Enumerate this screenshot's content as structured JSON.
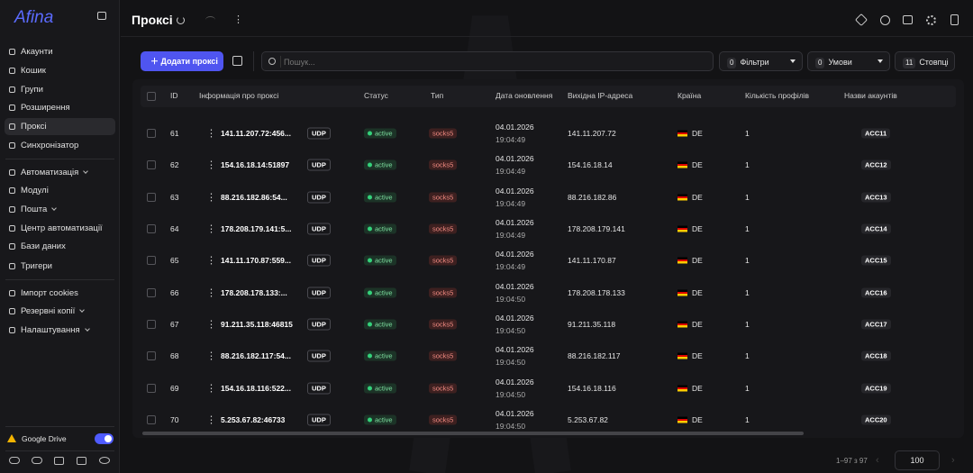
{
  "sidebar": {
    "logo": "Afina",
    "nav_top": [
      "Акаунти",
      "Кошик",
      "Групи",
      "Розширення",
      "Проксі",
      "Синхронізатор"
    ],
    "nav_auto": [
      "Автоматизація",
      "Модулі",
      "Пошта",
      "Центр автоматизації",
      "Бази даних",
      "Тригери"
    ],
    "nav_bottom": [
      "Імпорт cookies",
      "Резервні копії",
      "Налаштування"
    ],
    "google_drive": "Google Drive"
  },
  "header": {
    "title": "Проксі"
  },
  "toolbar": {
    "add_button": "Додати проксі",
    "search_placeholder": "Пошук...",
    "filters_count": "0",
    "filters": "Фільтри",
    "conditions_count": "0",
    "conditions": "Умови",
    "columns_count": "11",
    "columns": "Стовпці"
  },
  "table": {
    "headers": [
      "ID",
      "Інформація про проксі",
      "Статус",
      "Тип",
      "Дата оновлення",
      "Вихідна IP-адреса",
      "Країна",
      "Кількість профілів",
      "Назви акаунтів"
    ],
    "rows": [
      {
        "id": 61,
        "info": "141.11.207.72:456...",
        "protocol": "UDP",
        "status": "active",
        "type": "socks5",
        "date": "04.01.2026",
        "time": "19:04:49",
        "ip": "141.11.207.72",
        "country": "DE",
        "profiles": 1,
        "account": "ACC11"
      },
      {
        "id": 62,
        "info": "154.16.18.14:51897",
        "protocol": "UDP",
        "status": "active",
        "type": "socks5",
        "date": "04.01.2026",
        "time": "19:04:49",
        "ip": "154.16.18.14",
        "country": "DE",
        "profiles": 1,
        "account": "ACC12"
      },
      {
        "id": 63,
        "info": "88.216.182.86:54...",
        "protocol": "UDP",
        "status": "active",
        "type": "socks5",
        "date": "04.01.2026",
        "time": "19:04:49",
        "ip": "88.216.182.86",
        "country": "DE",
        "profiles": 1,
        "account": "ACC13"
      },
      {
        "id": 64,
        "info": "178.208.179.141:5...",
        "protocol": "UDP",
        "status": "active",
        "type": "socks5",
        "date": "04.01.2026",
        "time": "19:04:49",
        "ip": "178.208.179.141",
        "country": "DE",
        "profiles": 1,
        "account": "ACC14"
      },
      {
        "id": 65,
        "info": "141.11.170.87:559...",
        "protocol": "UDP",
        "status": "active",
        "type": "socks5",
        "date": "04.01.2026",
        "time": "19:04:49",
        "ip": "141.11.170.87",
        "country": "DE",
        "profiles": 1,
        "account": "ACC15"
      },
      {
        "id": 66,
        "info": "178.208.178.133:...",
        "protocol": "UDP",
        "status": "active",
        "type": "socks5",
        "date": "04.01.2026",
        "time": "19:04:50",
        "ip": "178.208.178.133",
        "country": "DE",
        "profiles": 1,
        "account": "ACC16"
      },
      {
        "id": 67,
        "info": "91.211.35.118:46815",
        "protocol": "UDP",
        "status": "active",
        "type": "socks5",
        "date": "04.01.2026",
        "time": "19:04:50",
        "ip": "91.211.35.118",
        "country": "DE",
        "profiles": 1,
        "account": "ACC17"
      },
      {
        "id": 68,
        "info": "88.216.182.117:54...",
        "protocol": "UDP",
        "status": "active",
        "type": "socks5",
        "date": "04.01.2026",
        "time": "19:04:50",
        "ip": "88.216.182.117",
        "country": "DE",
        "profiles": 1,
        "account": "ACC18"
      },
      {
        "id": 69,
        "info": "154.16.18.116:522...",
        "protocol": "UDP",
        "status": "active",
        "type": "socks5",
        "date": "04.01.2026",
        "time": "19:04:50",
        "ip": "154.16.18.116",
        "country": "DE",
        "profiles": 1,
        "account": "ACC19"
      },
      {
        "id": 70,
        "info": "5.253.67.82:46733",
        "protocol": "UDP",
        "status": "active",
        "type": "socks5",
        "date": "04.01.2026",
        "time": "19:04:50",
        "ip": "5.253.67.82",
        "country": "DE",
        "profiles": 1,
        "account": "ACC20"
      }
    ]
  },
  "footer": {
    "range": "1–97 з 97",
    "page_size": "100"
  }
}
